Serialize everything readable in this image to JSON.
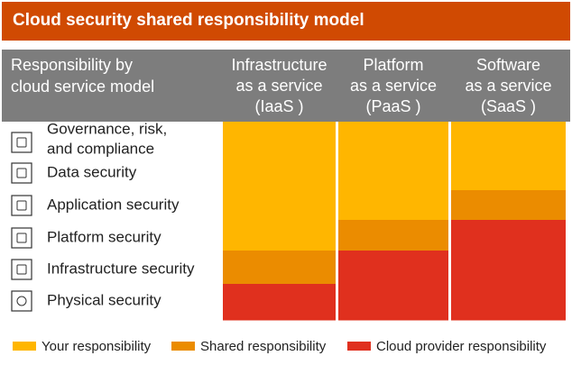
{
  "title": "Cloud security shared responsibility model",
  "header": {
    "label_lines": [
      "Responsibility by",
      "cloud service model"
    ]
  },
  "rows": [
    {
      "lines": [
        "Governance, risk,",
        "and compliance"
      ]
    },
    {
      "lines": [
        "Data security"
      ]
    },
    {
      "lines": [
        "Application security"
      ]
    },
    {
      "lines": [
        "Platform security"
      ]
    },
    {
      "lines": [
        "Infrastructure security"
      ]
    },
    {
      "lines": [
        "Physical security"
      ]
    }
  ],
  "columns": [
    {
      "lines": [
        "Infrastructure",
        "as a service",
        "(IaaS )"
      ],
      "cells": [
        "#ffb600",
        "#ffb600",
        "#ffb600",
        "#ffb600",
        "#eb8c00",
        "#e0301e"
      ]
    },
    {
      "lines": [
        "Platform",
        "as a service",
        "(PaaS )"
      ],
      "cells": [
        "#ffb600",
        "#ffb600",
        "#ffb600",
        "#eb8c00",
        "#e0301e",
        "#e0301e"
      ]
    },
    {
      "lines": [
        "Software",
        "as a service",
        "(SaaS )"
      ],
      "cells": [
        "#ffb600",
        "#ffb600",
        "#eb8c00",
        "#e0301e",
        "#e0301e",
        "#e0301e"
      ]
    }
  ],
  "legend": [
    {
      "label": "Your responsibility",
      "color": "#ffb600"
    },
    {
      "label": "Shared responsibility",
      "color": "#eb8c00"
    },
    {
      "label": "Cloud provider responsibility",
      "color": "#e0301e"
    }
  ]
}
